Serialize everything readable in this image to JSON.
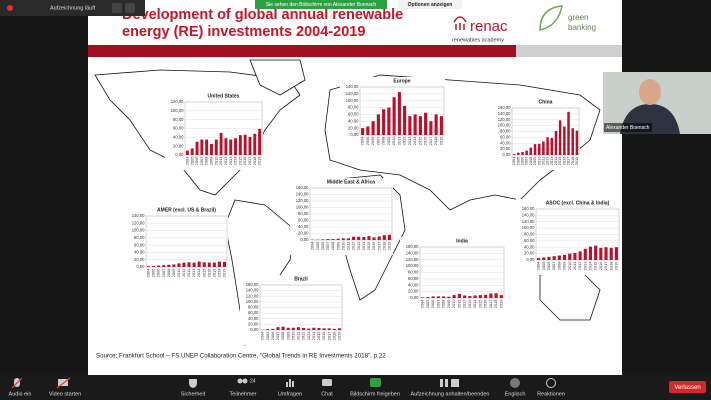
{
  "top_bar": {
    "recording": "Aufzeichnung läuft",
    "viewing": "Sie sehen den Bildschirm von Alexander Boensch",
    "options": "Optionen anzeigen"
  },
  "slide": {
    "title_line1": "Development of global annual renewable",
    "title_line2": "energy (RE) investments 2004-2019",
    "logo_renac": "renac",
    "logo_renac_sub": "renewables academy",
    "logo_green": "green",
    "logo_banking": "banking",
    "source": "Source: Frankfurt School – FS UNEP Collaboration Centre, \"Global Trends in RE Investments 2018\", p.22"
  },
  "charts": [
    {
      "type": "bar",
      "title": "United States",
      "color": "#b5122e",
      "categories": [
        "2004",
        "2005",
        "2006",
        "2007",
        "2008",
        "2009",
        "2010",
        "2011",
        "2012",
        "2013",
        "2014",
        "2015",
        "2016",
        "2017",
        "2018",
        "2019"
      ],
      "values": [
        10,
        15,
        30,
        35,
        35,
        25,
        35,
        50,
        38,
        35,
        38,
        45,
        46,
        41,
        48,
        59
      ],
      "ylim": [
        0,
        120
      ],
      "yticks": [
        {
          "value": 0,
          "label": "0,00"
        },
        {
          "value": 20,
          "label": "20,00"
        },
        {
          "value": 40,
          "label": "40,00"
        },
        {
          "value": 60,
          "label": "60,00"
        },
        {
          "value": 80,
          "label": "80,00"
        },
        {
          "value": 100,
          "label": "100,00"
        },
        {
          "value": 120,
          "label": "120,00"
        }
      ]
    },
    {
      "type": "bar",
      "title": "Europe",
      "color": "#b5122e",
      "categories": [
        "2004",
        "2005",
        "2006",
        "2007",
        "2008",
        "2009",
        "2010",
        "2011",
        "2012",
        "2013",
        "2014",
        "2015",
        "2016",
        "2017",
        "2018",
        "2019"
      ],
      "values": [
        20,
        25,
        40,
        60,
        75,
        80,
        110,
        125,
        85,
        55,
        60,
        55,
        65,
        40,
        60,
        55
      ],
      "ylim": [
        0,
        140
      ],
      "yticks": [
        {
          "value": 0,
          "label": "0,00"
        },
        {
          "value": 20,
          "label": "20,00"
        },
        {
          "value": 40,
          "label": "40,00"
        },
        {
          "value": 60,
          "label": "60,00"
        },
        {
          "value": 80,
          "label": "80,00"
        },
        {
          "value": 100,
          "label": "100,00"
        },
        {
          "value": 120,
          "label": "120,00"
        },
        {
          "value": 140,
          "label": "140,00"
        }
      ]
    },
    {
      "type": "bar",
      "title": "China",
      "color": "#b5122e",
      "categories": [
        "2004",
        "2005",
        "2006",
        "2007",
        "2008",
        "2009",
        "2010",
        "2011",
        "2012",
        "2013",
        "2014",
        "2015",
        "2016",
        "2017",
        "2018",
        "2019"
      ],
      "values": [
        3,
        8,
        10,
        15,
        25,
        37,
        38,
        46,
        60,
        58,
        82,
        118,
        97,
        147,
        91,
        83
      ],
      "ylim": [
        0,
        160
      ],
      "yticks": [
        {
          "value": 0,
          "label": "0,00"
        },
        {
          "value": 20,
          "label": "20,00"
        },
        {
          "value": 40,
          "label": "40,00"
        },
        {
          "value": 60,
          "label": "60,00"
        },
        {
          "value": 80,
          "label": "80,00"
        },
        {
          "value": 100,
          "label": "100,00"
        },
        {
          "value": 120,
          "label": "120,00"
        },
        {
          "value": 140,
          "label": "140,00"
        },
        {
          "value": 160,
          "label": "160,00"
        }
      ]
    },
    {
      "type": "bar",
      "title": "Middle East & Africa",
      "color": "#b5122e",
      "categories": [
        "2004",
        "2005",
        "2006",
        "2007",
        "2008",
        "2009",
        "2010",
        "2011",
        "2012",
        "2013",
        "2014",
        "2015",
        "2016",
        "2017",
        "2018",
        "2019"
      ],
      "values": [
        1,
        1,
        2,
        3,
        3,
        4,
        5,
        5,
        10,
        10,
        9,
        12,
        8,
        11,
        15,
        16
      ],
      "ylim": [
        0,
        160
      ],
      "yticks": [
        {
          "value": 0,
          "label": "0,00"
        },
        {
          "value": 20,
          "label": "20,00"
        },
        {
          "value": 40,
          "label": "40,00"
        },
        {
          "value": 60,
          "label": "60,00"
        },
        {
          "value": 80,
          "label": "80,00"
        },
        {
          "value": 100,
          "label": "100,00"
        },
        {
          "value": 120,
          "label": "120,00"
        },
        {
          "value": 140,
          "label": "140,00"
        },
        {
          "value": 160,
          "label": "160,00"
        }
      ]
    },
    {
      "type": "bar",
      "title": "AMER (excl. US & Brazil)",
      "color": "#b5122e",
      "categories": [
        "2004",
        "2005",
        "2006",
        "2007",
        "2008",
        "2009",
        "2010",
        "2011",
        "2012",
        "2013",
        "2014",
        "2015",
        "2016",
        "2017",
        "2018",
        "2019"
      ],
      "values": [
        2,
        3,
        4,
        5,
        6,
        7,
        10,
        12,
        13,
        12,
        15,
        13,
        12,
        12,
        15,
        14
      ],
      "ylim": [
        0,
        140
      ],
      "yticks": [
        {
          "value": 0,
          "label": "0,00"
        },
        {
          "value": 20,
          "label": "20,00"
        },
        {
          "value": 40,
          "label": "40,00"
        },
        {
          "value": 60,
          "label": "60,00"
        },
        {
          "value": 80,
          "label": "80,00"
        },
        {
          "value": 100,
          "label": "100,00"
        },
        {
          "value": 120,
          "label": "120,00"
        },
        {
          "value": 140,
          "label": "140,00"
        }
      ]
    },
    {
      "type": "bar",
      "title": "Brazil",
      "color": "#b5122e",
      "categories": [
        "2004",
        "2005",
        "2006",
        "2007",
        "2008",
        "2009",
        "2010",
        "2011",
        "2012",
        "2013",
        "2014",
        "2015",
        "2016",
        "2017",
        "2018",
        "2019"
      ],
      "values": [
        1,
        3,
        4,
        10,
        12,
        8,
        8,
        10,
        7,
        5,
        8,
        7,
        6,
        6,
        4,
        6
      ],
      "ylim": [
        0,
        160
      ],
      "yticks": [
        {
          "value": 0,
          "label": "0,00"
        },
        {
          "value": 20,
          "label": "20,00"
        },
        {
          "value": 40,
          "label": "40,00"
        },
        {
          "value": 60,
          "label": "60,00"
        },
        {
          "value": 80,
          "label": "80,00"
        },
        {
          "value": 100,
          "label": "100,00"
        },
        {
          "value": 120,
          "label": "120,00"
        },
        {
          "value": 140,
          "label": "140,00"
        },
        {
          "value": 160,
          "label": "160,00"
        }
      ]
    },
    {
      "type": "bar",
      "title": "India",
      "color": "#b5122e",
      "categories": [
        "2004",
        "2005",
        "2006",
        "2007",
        "2008",
        "2009",
        "2010",
        "2011",
        "2012",
        "2013",
        "2014",
        "2015",
        "2016",
        "2017",
        "2018",
        "2019"
      ],
      "values": [
        2,
        3,
        5,
        5,
        5,
        4,
        9,
        13,
        8,
        6,
        8,
        9,
        10,
        14,
        15,
        9
      ],
      "ylim": [
        0,
        160
      ],
      "yticks": [
        {
          "value": 0,
          "label": "0,00"
        },
        {
          "value": 20,
          "label": "20,00"
        },
        {
          "value": 40,
          "label": "40,00"
        },
        {
          "value": 60,
          "label": "60,00"
        },
        {
          "value": 80,
          "label": "80,00"
        },
        {
          "value": 100,
          "label": "100,00"
        },
        {
          "value": 120,
          "label": "120,00"
        },
        {
          "value": 140,
          "label": "140,00"
        },
        {
          "value": 160,
          "label": "160,00"
        }
      ]
    },
    {
      "type": "bar",
      "title": "ASOC (excl. China & India)",
      "color": "#b5122e",
      "categories": [
        "2004",
        "2005",
        "2006",
        "2007",
        "2008",
        "2009",
        "2010",
        "2011",
        "2012",
        "2013",
        "2014",
        "2015",
        "2016",
        "2017",
        "2018",
        "2019"
      ],
      "values": [
        6,
        8,
        10,
        12,
        14,
        16,
        20,
        22,
        27,
        35,
        42,
        45,
        38,
        40,
        38,
        40
      ],
      "ylim": [
        0,
        160
      ],
      "yticks": [
        {
          "value": 0,
          "label": "0,00"
        },
        {
          "value": 20,
          "label": "20,00"
        },
        {
          "value": 40,
          "label": "40,00"
        },
        {
          "value": 60,
          "label": "60,00"
        },
        {
          "value": 80,
          "label": "80,00"
        },
        {
          "value": 100,
          "label": "100,00"
        },
        {
          "value": 120,
          "label": "120,00"
        },
        {
          "value": 140,
          "label": "140,00"
        },
        {
          "value": 160,
          "label": "160,00"
        }
      ]
    }
  ],
  "video": {
    "name": "Alexander Boensch"
  },
  "toolbar": {
    "audio": "Audio ein",
    "video": "Video starten",
    "security": "Sicherheit",
    "participants": "Teilnehmer",
    "participants_count": "24",
    "polls": "Umfragen",
    "chat": "Chat",
    "share": "Bildschirm freigeben",
    "record": "Aufzeichnung anhalten/beenden",
    "language": "Englisch",
    "reactions": "Reaktionen",
    "leave": "Verlassen"
  }
}
